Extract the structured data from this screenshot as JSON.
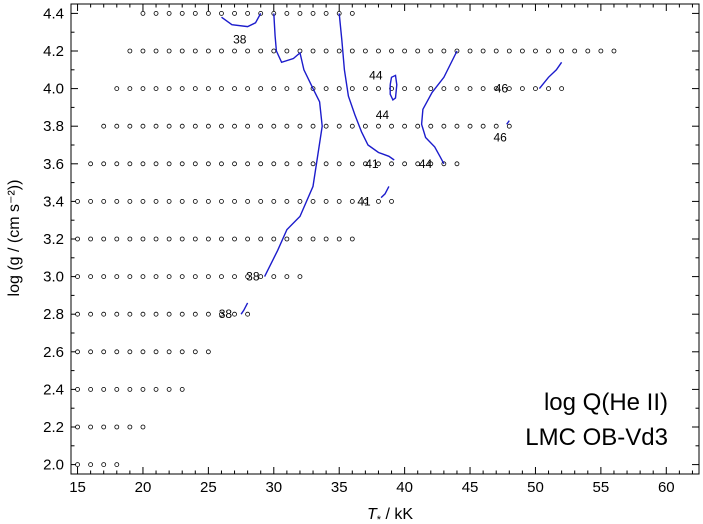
{
  "chart_data": {
    "type": "scatter",
    "xlabel_prefix": "T",
    "xlabel_sub": "*",
    "xlabel_suffix": " / kK",
    "ylabel": "log (g / (cm s⁻²))",
    "xlim": [
      14.5,
      62.5
    ],
    "ylim": [
      1.95,
      4.45
    ],
    "x_ticks": [
      15,
      20,
      25,
      30,
      35,
      40,
      45,
      50,
      55,
      60
    ],
    "y_ticks": [
      2.0,
      2.2,
      2.4,
      2.6,
      2.8,
      3.0,
      3.2,
      3.4,
      3.6,
      3.8,
      4.0,
      4.2,
      4.4
    ],
    "grid": false,
    "annotation_lines": [
      "log Q(He II)",
      "LMC OB-Vd3"
    ],
    "grid_models": [
      {
        "logg": 4.4,
        "T": [
          20,
          21,
          22,
          23,
          24,
          25,
          26,
          27,
          28,
          29,
          30,
          31,
          32,
          33,
          34,
          35,
          36
        ]
      },
      {
        "logg": 4.2,
        "T": [
          19,
          20,
          21,
          22,
          23,
          24,
          25,
          26,
          27,
          28,
          29,
          30,
          31,
          32,
          33,
          34,
          35,
          36,
          37,
          38,
          39,
          40,
          41,
          42,
          43,
          44,
          45,
          46,
          47,
          48,
          49,
          50,
          51,
          52,
          53,
          54,
          55,
          56
        ]
      },
      {
        "logg": 4.0,
        "T": [
          18,
          19,
          20,
          21,
          22,
          23,
          24,
          25,
          26,
          27,
          28,
          29,
          30,
          31,
          32,
          33,
          34,
          35,
          36,
          37,
          38,
          39,
          40,
          41,
          42,
          43,
          44,
          45,
          46,
          47,
          48,
          49,
          50,
          51,
          52
        ]
      },
      {
        "logg": 3.8,
        "T": [
          17,
          18,
          19,
          20,
          21,
          22,
          23,
          24,
          25,
          26,
          27,
          28,
          29,
          30,
          31,
          32,
          33,
          34,
          35,
          36,
          37,
          38,
          39,
          40,
          41,
          42,
          43,
          44,
          45,
          46,
          47,
          48
        ]
      },
      {
        "logg": 3.6,
        "T": [
          16,
          17,
          18,
          19,
          20,
          21,
          22,
          23,
          24,
          25,
          26,
          27,
          28,
          29,
          30,
          31,
          32,
          33,
          34,
          35,
          36,
          37,
          38,
          39,
          40,
          41,
          42,
          43,
          44
        ]
      },
      {
        "logg": 3.4,
        "T": [
          15,
          16,
          17,
          18,
          19,
          20,
          21,
          22,
          23,
          24,
          25,
          26,
          27,
          28,
          29,
          30,
          31,
          32,
          33,
          34,
          35,
          36,
          37,
          38,
          39
        ]
      },
      {
        "logg": 3.2,
        "T": [
          15,
          16,
          17,
          18,
          19,
          20,
          21,
          22,
          23,
          24,
          25,
          26,
          27,
          28,
          29,
          30,
          31,
          32,
          33,
          34,
          35,
          36
        ]
      },
      {
        "logg": 3.0,
        "T": [
          15,
          16,
          17,
          18,
          19,
          20,
          21,
          22,
          23,
          24,
          25,
          26,
          27,
          28,
          29,
          30,
          31,
          32
        ]
      },
      {
        "logg": 2.8,
        "T": [
          15,
          16,
          17,
          18,
          19,
          20,
          21,
          22,
          23,
          24,
          25,
          26,
          27,
          28
        ]
      },
      {
        "logg": 2.6,
        "T": [
          15,
          16,
          17,
          18,
          19,
          20,
          21,
          22,
          23,
          24,
          25
        ]
      },
      {
        "logg": 2.4,
        "T": [
          15,
          16,
          17,
          18,
          19,
          20,
          21,
          22,
          23
        ]
      },
      {
        "logg": 2.2,
        "T": [
          15,
          16,
          17,
          18,
          19,
          20
        ]
      },
      {
        "logg": 2.0,
        "T": [
          15,
          16,
          17,
          18
        ]
      }
    ],
    "contours": [
      {
        "level": "38",
        "points": [
          [
            26.0,
            4.38
          ],
          [
            26.8,
            4.34
          ],
          [
            28.0,
            4.33
          ],
          [
            28.6,
            4.35
          ],
          [
            29.0,
            4.4
          ]
        ]
      },
      {
        "level": "38",
        "points": [
          [
            29.3,
            3.0
          ],
          [
            30.3,
            3.14
          ],
          [
            31.0,
            3.25
          ],
          [
            32.0,
            3.32
          ],
          [
            33.0,
            3.48
          ],
          [
            33.7,
            3.8
          ],
          [
            33.5,
            3.93
          ],
          [
            33.0,
            4.0
          ],
          [
            32.3,
            4.1
          ],
          [
            32.0,
            4.19
          ],
          [
            31.5,
            4.16
          ],
          [
            30.6,
            4.14
          ],
          [
            30.2,
            4.2
          ],
          [
            30.1,
            4.28
          ],
          [
            30.0,
            4.4
          ]
        ]
      },
      {
        "level": "38",
        "points": [
          [
            27.5,
            2.8
          ],
          [
            27.7,
            2.82
          ],
          [
            28.0,
            2.86
          ]
        ]
      },
      {
        "level": "41",
        "points": [
          [
            35.0,
            4.4
          ],
          [
            35.2,
            4.26
          ],
          [
            35.4,
            4.1
          ],
          [
            35.7,
            3.96
          ],
          [
            36.2,
            3.86
          ],
          [
            36.7,
            3.77
          ],
          [
            37.2,
            3.7
          ],
          [
            38.0,
            3.66
          ],
          [
            38.8,
            3.64
          ],
          [
            39.2,
            3.62
          ]
        ]
      },
      {
        "level": "41",
        "points": [
          [
            38.2,
            3.42
          ],
          [
            38.5,
            3.44
          ],
          [
            38.8,
            3.48
          ]
        ]
      },
      {
        "level": "44",
        "points": [
          [
            38.9,
            4.02
          ],
          [
            39.0,
            4.06
          ],
          [
            39.3,
            4.07
          ],
          [
            39.4,
            4.02
          ],
          [
            39.3,
            3.95
          ],
          [
            39.1,
            3.94
          ],
          [
            38.9,
            3.97
          ],
          [
            38.9,
            4.02
          ]
        ]
      },
      {
        "level": "44",
        "points": [
          [
            44.0,
            4.2
          ],
          [
            43.0,
            4.06
          ],
          [
            42.1,
            3.98
          ],
          [
            41.4,
            3.89
          ],
          [
            41.3,
            3.81
          ],
          [
            41.6,
            3.74
          ],
          [
            42.3,
            3.69
          ],
          [
            42.7,
            3.64
          ],
          [
            43.0,
            3.6
          ]
        ]
      },
      {
        "level": "46",
        "points": [
          [
            50.3,
            4.0
          ],
          [
            51.0,
            4.06
          ],
          [
            51.6,
            4.1
          ],
          [
            52.0,
            4.14
          ]
        ]
      },
      {
        "level": "46",
        "points": [
          [
            47.8,
            3.81
          ],
          [
            48.0,
            3.83
          ]
        ]
      }
    ],
    "contour_labels": [
      {
        "text": "38",
        "T": 27.4,
        "logg": 4.26
      },
      {
        "text": "44",
        "T": 37.8,
        "logg": 4.07
      },
      {
        "text": "46",
        "T": 47.4,
        "logg": 4.0
      },
      {
        "text": "44",
        "T": 38.3,
        "logg": 3.86
      },
      {
        "text": "46",
        "T": 47.3,
        "logg": 3.74
      },
      {
        "text": "41",
        "T": 37.5,
        "logg": 3.6
      },
      {
        "text": "44",
        "T": 41.6,
        "logg": 3.6
      },
      {
        "text": "41",
        "T": 36.9,
        "logg": 3.4
      },
      {
        "text": "38",
        "T": 28.4,
        "logg": 3.0
      },
      {
        "text": "38",
        "T": 26.3,
        "logg": 2.8
      }
    ],
    "colors": {
      "contour": "#1c1ccc",
      "points": "#000000",
      "axes": "#000000"
    }
  }
}
